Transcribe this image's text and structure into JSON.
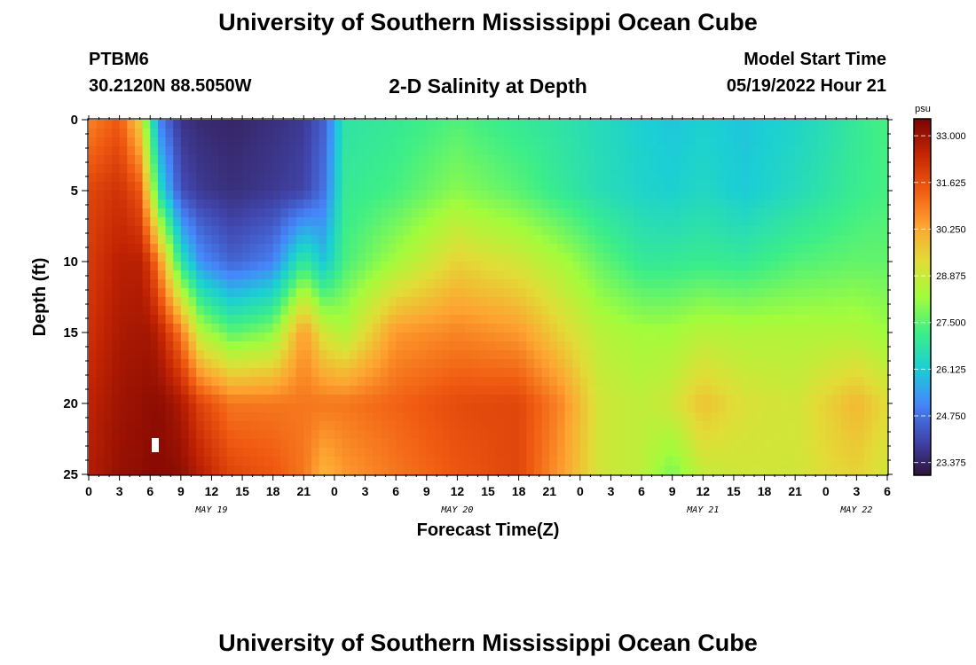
{
  "header": {
    "title": "University of Southern Mississippi Ocean Cube",
    "station": "PTBM6",
    "coords": "30.2120N  88.5050W",
    "plot_title": "2-D Salinity at Depth",
    "model_start_label": "Model Start Time",
    "model_start_value": "05/19/2022 Hour 21"
  },
  "footer": {
    "title": "University of Southern Mississippi Ocean Cube"
  },
  "chart_data": {
    "type": "heatmap",
    "title": "2-D Salinity at Depth",
    "xlabel": "Forecast Time(Z)",
    "ylabel": "Depth (ft)",
    "x_range_hours": [
      0,
      78
    ],
    "x_tick_labels": [
      "0",
      "3",
      "6",
      "9",
      "12",
      "15",
      "18",
      "21",
      "0",
      "3",
      "6",
      "9",
      "12",
      "15",
      "18",
      "21",
      "0",
      "3",
      "6",
      "9",
      "12",
      "15",
      "18",
      "21",
      "0",
      "3",
      "6"
    ],
    "date_labels": [
      {
        "label": "MAY 19",
        "hour": 12
      },
      {
        "label": "MAY 20",
        "hour": 36
      },
      {
        "label": "MAY 21",
        "hour": 60
      },
      {
        "label": "MAY 22",
        "hour": 75
      }
    ],
    "y_range_ft": [
      0,
      25
    ],
    "y_ticks": [
      0,
      5,
      10,
      15,
      20,
      25
    ],
    "colorbar": {
      "unit": "psu",
      "min": 23.0,
      "max": 33.5,
      "ticks": [
        "33.000",
        "31.625",
        "30.250",
        "28.875",
        "27.500",
        "26.125",
        "24.750",
        "23.375"
      ],
      "colormap": [
        "#30123b",
        "#4146ad",
        "#4686fb",
        "#1bcfd4",
        "#3dee88",
        "#a2fc3c",
        "#e1dd37",
        "#fea331",
        "#f05b12",
        "#c42503",
        "#7a0403"
      ]
    },
    "salinity_control_points": [
      {
        "hour": 0,
        "depth_ft": [
          0,
          5,
          10,
          15,
          20,
          25
        ],
        "psu": [
          30.8,
          31.8,
          32.0,
          32.2,
          32.5,
          32.7
        ]
      },
      {
        "hour": 3,
        "depth_ft": [
          0,
          5,
          10,
          15,
          20,
          25
        ],
        "psu": [
          31.5,
          32.2,
          32.6,
          32.8,
          33.0,
          33.1
        ]
      },
      {
        "hour": 5,
        "depth_ft": [
          0,
          5,
          10,
          15,
          20,
          25
        ],
        "psu": [
          29.5,
          31.5,
          32.6,
          32.9,
          33.1,
          33.2
        ]
      },
      {
        "hour": 6,
        "depth_ft": [
          0,
          5,
          10,
          15,
          20,
          25
        ],
        "psu": [
          27.0,
          29.0,
          32.0,
          32.9,
          33.2,
          33.3
        ]
      },
      {
        "hour": 7,
        "depth_ft": [
          0,
          5,
          10,
          15,
          20,
          25
        ],
        "psu": [
          25.0,
          26.5,
          30.5,
          32.5,
          33.2,
          33.3
        ]
      },
      {
        "hour": 9,
        "depth_ft": [
          0,
          5,
          10,
          15,
          20,
          25
        ],
        "psu": [
          23.7,
          24.2,
          26.8,
          31.0,
          32.8,
          33.2
        ]
      },
      {
        "hour": 11,
        "depth_ft": [
          0,
          5,
          10,
          15,
          20,
          25
        ],
        "psu": [
          23.5,
          23.8,
          25.2,
          28.5,
          31.8,
          32.6
        ]
      },
      {
        "hour": 14,
        "depth_ft": [
          0,
          5,
          10,
          15,
          20,
          25
        ],
        "psu": [
          23.4,
          23.6,
          24.5,
          27.5,
          31.0,
          31.8
        ]
      },
      {
        "hour": 18,
        "depth_ft": [
          0,
          5,
          10,
          15,
          20,
          25
        ],
        "psu": [
          23.6,
          23.8,
          25.0,
          28.0,
          31.0,
          31.5
        ]
      },
      {
        "hour": 21,
        "depth_ft": [
          0,
          5,
          10,
          15,
          20,
          25
        ],
        "psu": [
          23.8,
          24.0,
          27.0,
          30.5,
          31.0,
          31.0
        ]
      },
      {
        "hour": 23,
        "depth_ft": [
          0,
          5,
          10,
          15,
          20,
          25
        ],
        "psu": [
          24.5,
          24.8,
          26.0,
          29.0,
          31.0,
          30.0
        ]
      },
      {
        "hour": 25,
        "depth_ft": [
          0,
          5,
          10,
          15,
          20,
          25
        ],
        "psu": [
          26.8,
          27.0,
          27.3,
          28.5,
          31.0,
          30.5
        ]
      },
      {
        "hour": 30,
        "depth_ft": [
          0,
          5,
          10,
          15,
          20,
          25
        ],
        "psu": [
          27.0,
          27.3,
          28.3,
          30.5,
          31.3,
          31.0
        ]
      },
      {
        "hour": 36,
        "depth_ft": [
          0,
          5,
          10,
          15,
          20,
          25
        ],
        "psu": [
          27.4,
          28.0,
          29.5,
          30.8,
          31.7,
          31.5
        ]
      },
      {
        "hour": 42,
        "depth_ft": [
          0,
          5,
          10,
          15,
          20,
          25
        ],
        "psu": [
          27.0,
          27.5,
          29.0,
          30.5,
          31.8,
          31.8
        ]
      },
      {
        "hour": 46,
        "depth_ft": [
          0,
          5,
          10,
          15,
          20,
          25
        ],
        "psu": [
          26.8,
          27.0,
          28.4,
          29.5,
          30.8,
          30.5
        ]
      },
      {
        "hour": 50,
        "depth_ft": [
          0,
          5,
          10,
          15,
          20,
          25
        ],
        "psu": [
          26.5,
          26.6,
          27.6,
          28.6,
          29.0,
          29.0
        ]
      },
      {
        "hour": 54,
        "depth_ft": [
          0,
          5,
          10,
          15,
          20,
          25
        ],
        "psu": [
          26.2,
          26.3,
          27.0,
          28.3,
          28.7,
          28.7
        ]
      },
      {
        "hour": 57,
        "depth_ft": [
          0,
          5,
          10,
          15,
          20,
          25
        ],
        "psu": [
          26.0,
          26.2,
          27.0,
          28.3,
          29.0,
          27.8
        ]
      },
      {
        "hour": 60,
        "depth_ft": [
          0,
          5,
          10,
          15,
          20,
          25
        ],
        "psu": [
          26.2,
          26.4,
          27.1,
          28.6,
          29.8,
          28.8
        ]
      },
      {
        "hour": 64,
        "depth_ft": [
          0,
          5,
          10,
          15,
          20,
          25
        ],
        "psu": [
          26.0,
          26.1,
          27.0,
          28.5,
          29.2,
          29.0
        ]
      },
      {
        "hour": 69,
        "depth_ft": [
          0,
          5,
          10,
          15,
          20,
          25
        ],
        "psu": [
          26.3,
          26.5,
          27.4,
          28.5,
          29.0,
          29.0
        ]
      },
      {
        "hour": 72,
        "depth_ft": [
          0,
          5,
          10,
          15,
          20,
          25
        ],
        "psu": [
          26.6,
          26.8,
          27.5,
          28.5,
          29.5,
          29.3
        ]
      },
      {
        "hour": 75,
        "depth_ft": [
          0,
          5,
          10,
          15,
          20,
          25
        ],
        "psu": [
          27.0,
          27.1,
          27.6,
          28.5,
          30.0,
          29.5
        ]
      },
      {
        "hour": 78,
        "depth_ft": [
          0,
          5,
          10,
          15,
          20,
          25
        ],
        "psu": [
          27.3,
          27.3,
          27.6,
          28.2,
          29.3,
          29.0
        ]
      }
    ]
  }
}
